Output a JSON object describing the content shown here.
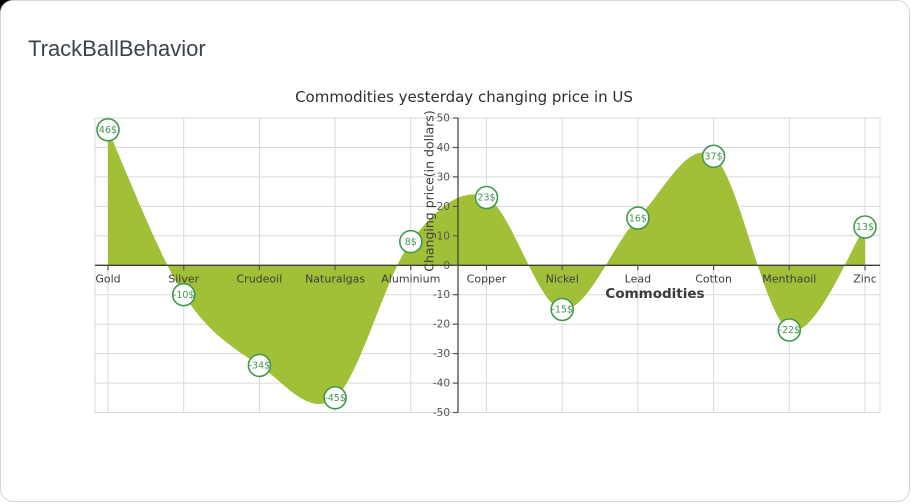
{
  "header": {
    "title": "TrackBallBehavior"
  },
  "chart_data": {
    "type": "area",
    "subtype": "spline-area-with-data-labels",
    "title": "Commodities yesterday changing price in US",
    "xlabel": "Commodities",
    "ylabel": "Changing price(in dollars)",
    "categories": [
      "Gold",
      "Silver",
      "Crudeoil",
      "Naturalgas",
      "Aluminium",
      "Copper",
      "Nickel",
      "Lead",
      "Cotton",
      "Menthaoil",
      "Zinc"
    ],
    "values": [
      46,
      -10,
      -34,
      -45,
      8,
      23,
      -15,
      16,
      37,
      -22,
      13
    ],
    "data_labels": [
      "46$",
      "-10$",
      "-34$",
      "-45$",
      "8$",
      "23$",
      "-15$",
      "16$",
      "37$",
      "-22$",
      "13$"
    ],
    "ylim": [
      -50,
      50
    ],
    "y_tick_step": 10,
    "baseline": 0,
    "grid": true,
    "legend": "none",
    "colors": {
      "area": "#a1c037",
      "bubble_fill": "#ffffff",
      "bubble_stroke": "#3f9a4e",
      "bubble_text": "#3f9a4e",
      "axis": "#3c3c3c",
      "grid": "#d9d9d9",
      "y_tick_text": "#555555",
      "category_text": "#3c3c3c"
    }
  }
}
